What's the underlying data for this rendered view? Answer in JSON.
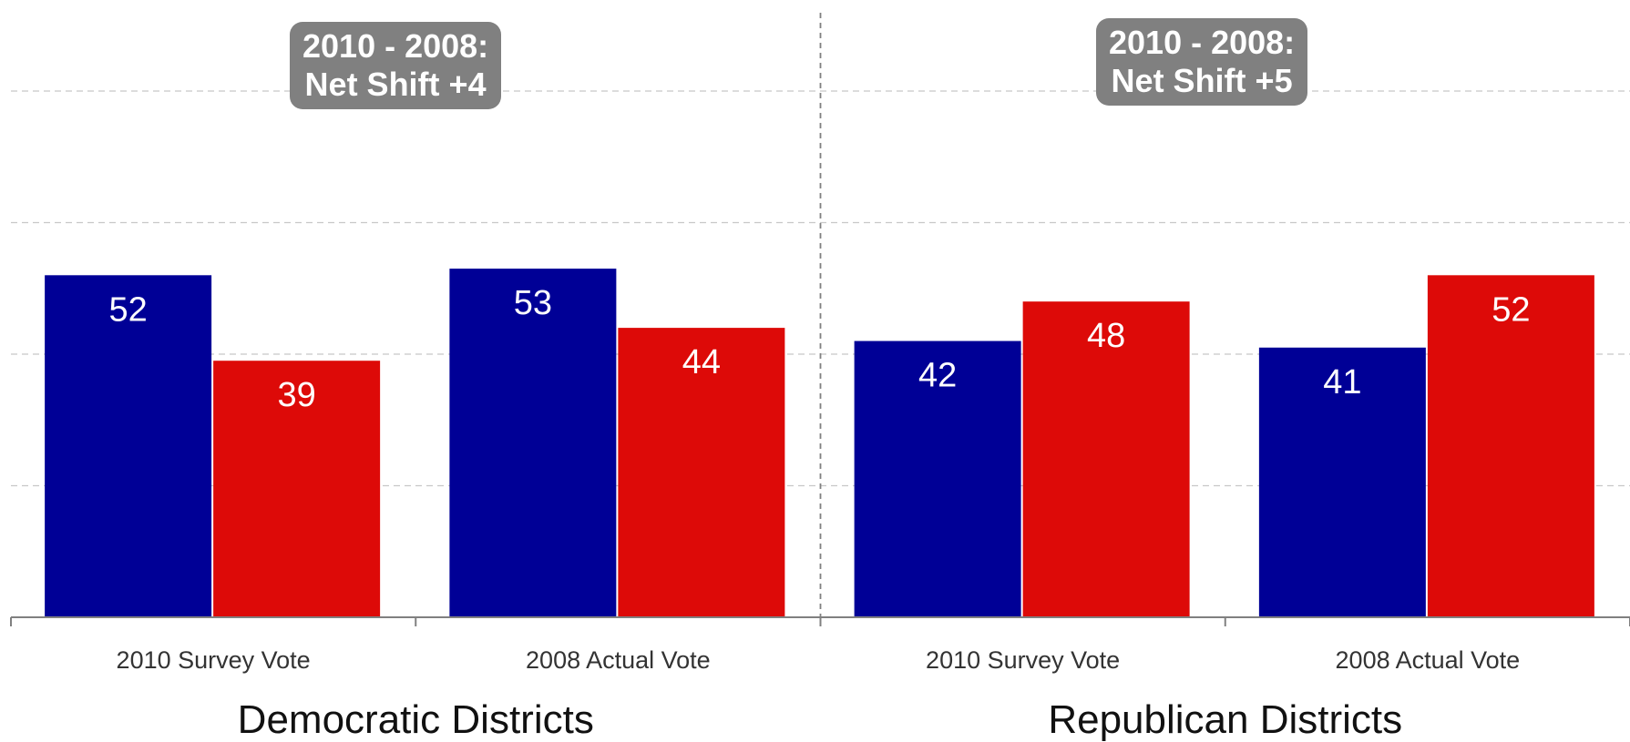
{
  "chart_data": {
    "type": "bar",
    "groups": [
      {
        "name": "Democratic Districts",
        "categories": [
          "2010 Survey Vote",
          "2008 Actual Vote"
        ],
        "series": [
          {
            "color": "#000096",
            "values": [
              52,
              53
            ]
          },
          {
            "color": "#DD0A08",
            "values": [
              39,
              44
            ]
          }
        ],
        "annotation": {
          "line1": "2010 - 2008:",
          "line2": "Net Shift +4"
        }
      },
      {
        "name": "Republican Districts",
        "categories": [
          "2010 Survey Vote",
          "2008 Actual Vote"
        ],
        "series": [
          {
            "color": "#000096",
            "values": [
              42,
              41
            ]
          },
          {
            "color": "#DD0A08",
            "values": [
              48,
              52
            ]
          }
        ],
        "annotation": {
          "line1": "2010 - 2008:",
          "line2": "Net Shift +5"
        }
      }
    ],
    "ylim": [
      0,
      80
    ],
    "grid": true,
    "colors": {
      "gridline": "#C8C8C8",
      "axis": "#808080",
      "annotation_bg": "#808080",
      "label_text": "#FFFFFF"
    }
  }
}
